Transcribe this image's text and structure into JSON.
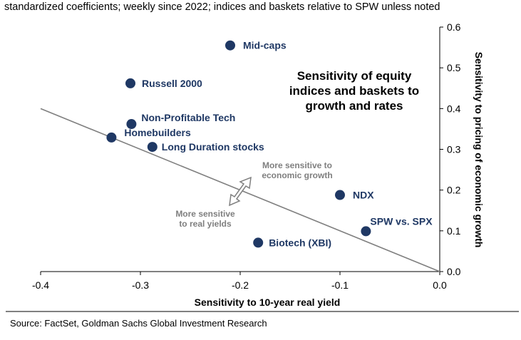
{
  "subtitle": "standardized coefficients; weekly since 2022; indices and baskets relative to SPW unless noted",
  "source": "Source: FactSet, Goldman Sachs Global Investment Research",
  "chart_data": {
    "type": "scatter",
    "title_lines": [
      "Sensitivity of equity",
      "indices and baskets to",
      "growth and rates"
    ],
    "xlabel": "Sensitivity to 10-year real yield",
    "ylabel": "Sensitivity to pricing of economic growth",
    "xlim": [
      -0.4,
      0.0
    ],
    "ylim": [
      0.0,
      0.6
    ],
    "x_ticks": [
      "-0.4",
      "-0.3",
      "-0.2",
      "-0.1",
      "0.0"
    ],
    "x_tick_values": [
      -0.4,
      -0.3,
      -0.2,
      -0.1,
      0.0
    ],
    "y_ticks": [
      "0.0",
      "0.1",
      "0.2",
      "0.3",
      "0.4",
      "0.5",
      "0.6"
    ],
    "y_tick_values": [
      0.0,
      0.1,
      0.2,
      0.3,
      0.4,
      0.5,
      0.6
    ],
    "y_axis_side": "right",
    "grid": false,
    "marker_color": "#1f3864",
    "line_color": "#7f7f7f",
    "points": [
      {
        "label": "Mid-caps",
        "x": -0.21,
        "y": 0.555
      },
      {
        "label": "Russell 2000",
        "x": -0.31,
        "y": 0.462
      },
      {
        "label": "Non-Profitable Tech",
        "x": -0.309,
        "y": 0.362
      },
      {
        "label": "Homebuilders",
        "x": -0.329,
        "y": 0.329
      },
      {
        "label": "Long Duration stocks",
        "x": -0.288,
        "y": 0.306
      },
      {
        "label": "NDX",
        "x": -0.1,
        "y": 0.188
      },
      {
        "label": "SPW vs. SPX",
        "x": -0.074,
        "y": 0.099
      },
      {
        "label": "Biotech (XBI)",
        "x": -0.182,
        "y": 0.071
      }
    ],
    "reference_line": {
      "from": [
        -0.4,
        0.4
      ],
      "to": [
        0.0,
        0.0
      ]
    },
    "annotations": {
      "growth_text": [
        "More sensitive to",
        "economic growth"
      ],
      "rates_text": [
        "More sensitive",
        "to real yields"
      ]
    }
  }
}
